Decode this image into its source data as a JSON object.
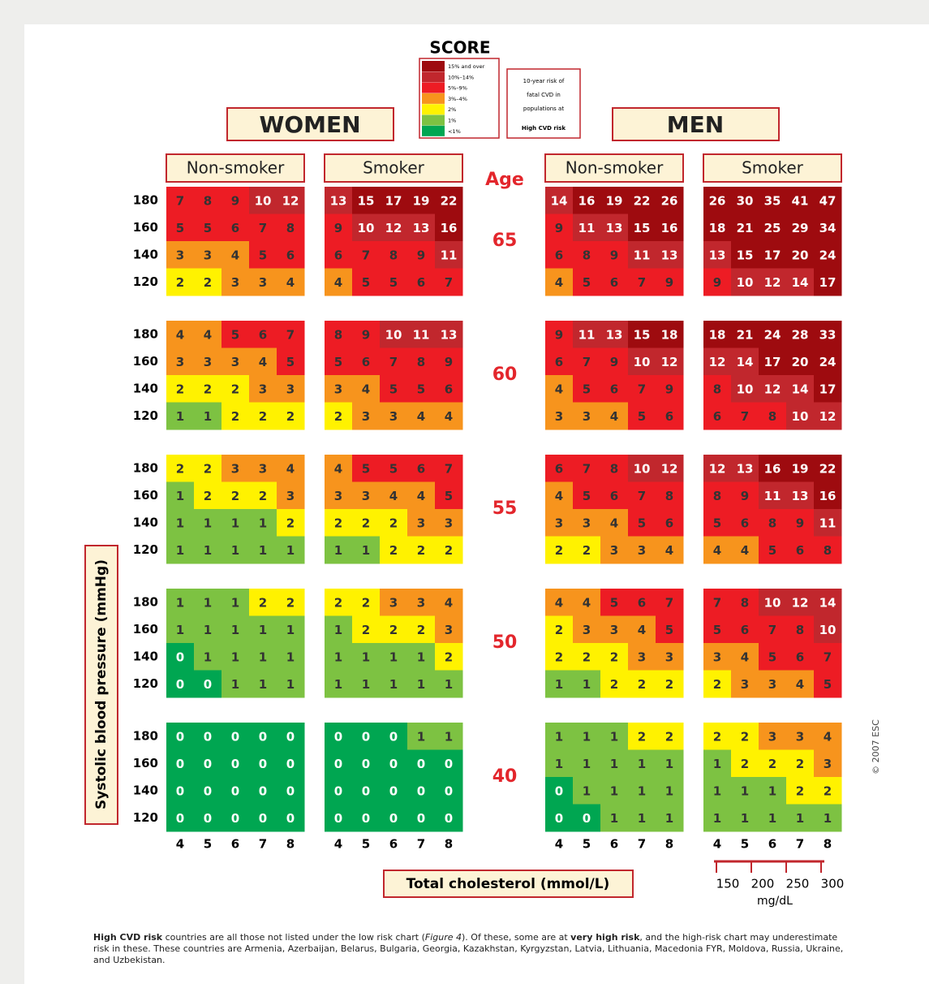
{
  "title": "SCORE",
  "legend": [
    {
      "label": "15% and over",
      "min": 15,
      "color": "#9e0b0f"
    },
    {
      "label": "10%–14%",
      "min": 10,
      "color": "#c1272d"
    },
    {
      "label": "5%–9%",
      "min": 5,
      "color": "#ed1c24"
    },
    {
      "label": "3%–4%",
      "min": 3,
      "color": "#f7941d"
    },
    {
      "label": "2%",
      "min": 2,
      "color": "#fff200"
    },
    {
      "label": "1%",
      "min": 1,
      "color": "#7dc242"
    },
    {
      "label": "<1%",
      "min": 0,
      "color": "#00a651"
    }
  ],
  "legend_note": [
    "10-year risk of",
    "fatal CVD in",
    "populations at",
    "High CVD risk"
  ],
  "sexes": [
    "WOMEN",
    "MEN"
  ],
  "smoking": [
    "Non-smoker",
    "Smoker",
    "Non-smoker",
    "Smoker"
  ],
  "age_label": "Age",
  "sbp": [
    180,
    160,
    140,
    120
  ],
  "cholesterol": [
    4,
    5,
    6,
    7,
    8
  ],
  "mg_ticks": [
    150,
    200,
    250,
    300
  ],
  "mg_unit": "mg/dL",
  "y_label": "Systolic blood pressure (mmHg)",
  "x_label": "Total cholesterol (mmol/L)",
  "copyright": "© 2007 ESC",
  "ages": [
    {
      "age": 65,
      "cells": [
        [
          [
            7,
            8,
            9,
            10,
            12
          ],
          [
            5,
            5,
            6,
            7,
            8
          ],
          [
            3,
            3,
            4,
            5,
            6
          ],
          [
            2,
            2,
            3,
            3,
            4
          ]
        ],
        [
          [
            13,
            15,
            17,
            19,
            22
          ],
          [
            9,
            10,
            12,
            13,
            16
          ],
          [
            6,
            7,
            8,
            9,
            11
          ],
          [
            4,
            5,
            5,
            6,
            7
          ]
        ],
        [
          [
            14,
            16,
            19,
            22,
            26
          ],
          [
            9,
            11,
            13,
            15,
            16
          ],
          [
            6,
            8,
            9,
            11,
            13
          ],
          [
            4,
            5,
            6,
            7,
            9
          ]
        ],
        [
          [
            26,
            30,
            35,
            41,
            47
          ],
          [
            18,
            21,
            25,
            29,
            34
          ],
          [
            13,
            15,
            17,
            20,
            24
          ],
          [
            9,
            10,
            12,
            14,
            17
          ]
        ]
      ]
    },
    {
      "age": 60,
      "cells": [
        [
          [
            4,
            4,
            5,
            6,
            7
          ],
          [
            3,
            3,
            3,
            4,
            5
          ],
          [
            2,
            2,
            2,
            3,
            3
          ],
          [
            1,
            1,
            2,
            2,
            2
          ]
        ],
        [
          [
            8,
            9,
            10,
            11,
            13
          ],
          [
            5,
            6,
            7,
            8,
            9
          ],
          [
            3,
            4,
            5,
            5,
            6
          ],
          [
            2,
            3,
            3,
            4,
            4
          ]
        ],
        [
          [
            9,
            11,
            13,
            15,
            18
          ],
          [
            6,
            7,
            9,
            10,
            12
          ],
          [
            4,
            5,
            6,
            7,
            9
          ],
          [
            3,
            3,
            4,
            5,
            6
          ]
        ],
        [
          [
            18,
            21,
            24,
            28,
            33
          ],
          [
            12,
            14,
            17,
            20,
            24
          ],
          [
            8,
            10,
            12,
            14,
            17
          ],
          [
            6,
            7,
            8,
            10,
            12
          ]
        ]
      ]
    },
    {
      "age": 55,
      "cells": [
        [
          [
            2,
            2,
            3,
            3,
            4
          ],
          [
            1,
            2,
            2,
            2,
            3
          ],
          [
            1,
            1,
            1,
            1,
            2
          ],
          [
            1,
            1,
            1,
            1,
            1
          ]
        ],
        [
          [
            4,
            5,
            5,
            6,
            7
          ],
          [
            3,
            3,
            4,
            4,
            5
          ],
          [
            2,
            2,
            2,
            3,
            3
          ],
          [
            1,
            1,
            2,
            2,
            2
          ]
        ],
        [
          [
            6,
            7,
            8,
            10,
            12
          ],
          [
            4,
            5,
            6,
            7,
            8
          ],
          [
            3,
            3,
            4,
            5,
            6
          ],
          [
            2,
            2,
            3,
            3,
            4
          ]
        ],
        [
          [
            12,
            13,
            16,
            19,
            22
          ],
          [
            8,
            9,
            11,
            13,
            16
          ],
          [
            5,
            6,
            8,
            9,
            11
          ],
          [
            4,
            4,
            5,
            6,
            8
          ]
        ]
      ]
    },
    {
      "age": 50,
      "cells": [
        [
          [
            1,
            1,
            1,
            2,
            2
          ],
          [
            1,
            1,
            1,
            1,
            1
          ],
          [
            0,
            1,
            1,
            1,
            1
          ],
          [
            0,
            0,
            1,
            1,
            1
          ]
        ],
        [
          [
            2,
            2,
            3,
            3,
            4
          ],
          [
            1,
            2,
            2,
            2,
            3
          ],
          [
            1,
            1,
            1,
            1,
            2
          ],
          [
            1,
            1,
            1,
            1,
            1
          ]
        ],
        [
          [
            4,
            4,
            5,
            6,
            7
          ],
          [
            2,
            3,
            3,
            4,
            5
          ],
          [
            2,
            2,
            2,
            3,
            3
          ],
          [
            1,
            1,
            2,
            2,
            2
          ]
        ],
        [
          [
            7,
            8,
            10,
            12,
            14
          ],
          [
            5,
            6,
            7,
            8,
            10
          ],
          [
            3,
            4,
            5,
            6,
            7
          ],
          [
            2,
            3,
            3,
            4,
            5
          ]
        ]
      ]
    },
    {
      "age": 40,
      "cells": [
        [
          [
            0,
            0,
            0,
            0,
            0
          ],
          [
            0,
            0,
            0,
            0,
            0
          ],
          [
            0,
            0,
            0,
            0,
            0
          ],
          [
            0,
            0,
            0,
            0,
            0
          ]
        ],
        [
          [
            0,
            0,
            0,
            1,
            1
          ],
          [
            0,
            0,
            0,
            0,
            0
          ],
          [
            0,
            0,
            0,
            0,
            0
          ],
          [
            0,
            0,
            0,
            0,
            0
          ]
        ],
        [
          [
            1,
            1,
            1,
            2,
            2
          ],
          [
            1,
            1,
            1,
            1,
            1
          ],
          [
            0,
            1,
            1,
            1,
            1
          ],
          [
            0,
            0,
            1,
            1,
            1
          ]
        ],
        [
          [
            2,
            2,
            3,
            3,
            4
          ],
          [
            1,
            2,
            2,
            2,
            3
          ],
          [
            1,
            1,
            1,
            2,
            2
          ],
          [
            1,
            1,
            1,
            1,
            1
          ]
        ]
      ]
    }
  ],
  "footnote": [
    "High CVD risk",
    " countries are all those not listed under the low risk chart (",
    "Figure 4",
    "). Of these, some are at ",
    "very high risk",
    ", and the high-risk chart may underestimate risk in these. These countries are Armenia, Azerbaijan, Belarus, Bulgaria, Georgia, Kazakhstan, Kyrgyzstan, Latvia, Lithuania, Macedonia FYR, Moldova, Russia, Ukraine, and Uzbekistan."
  ]
}
